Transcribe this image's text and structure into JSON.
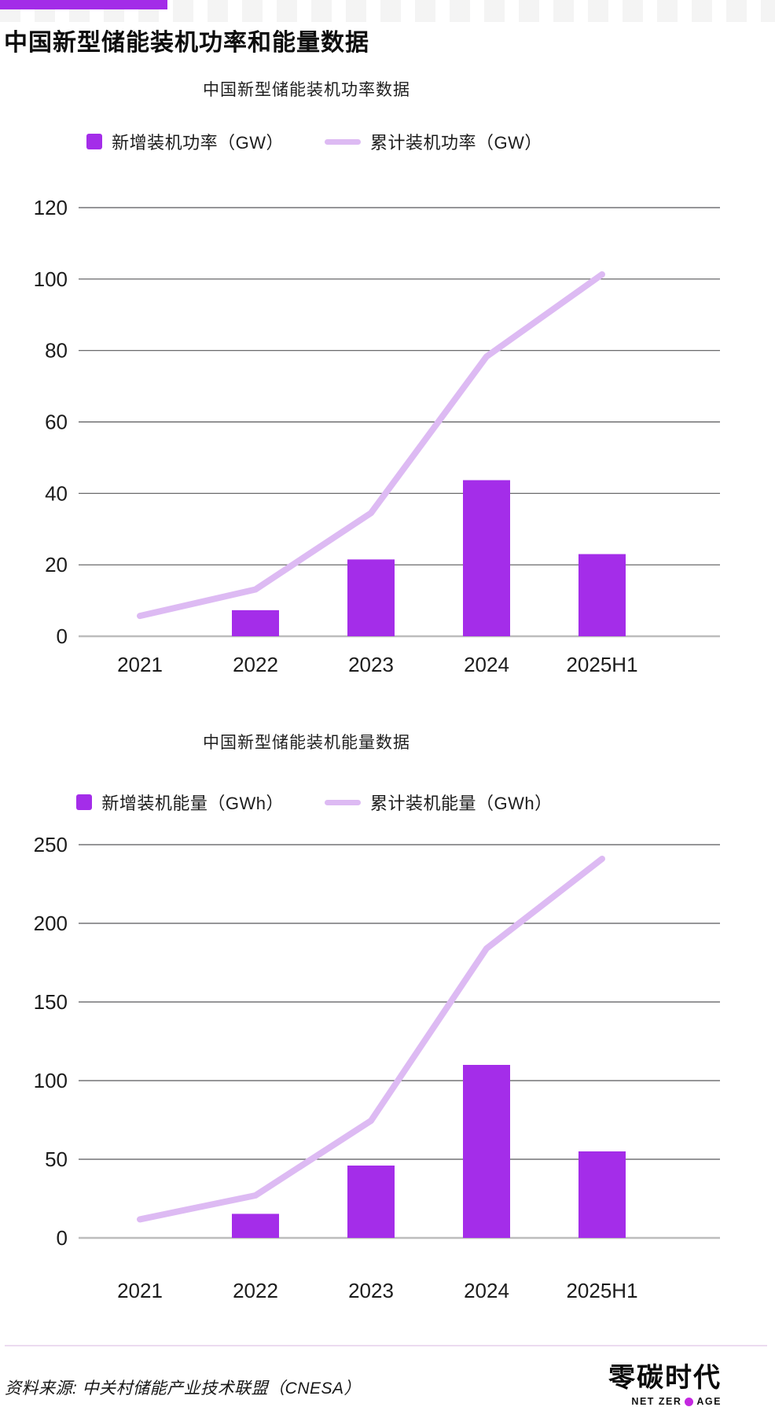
{
  "page": {
    "main_title": "中国新型储能装机功率和能量数据",
    "source_note": "资料来源: 中关村储能产业技术联盟（CNESA）",
    "brand": {
      "name": "零碳时代",
      "tagline_left": "NET ZER",
      "tagline_dot": "●",
      "tagline_right": "AGE"
    },
    "colors": {
      "topbar": "#a32ce8",
      "bar": "#a42de9",
      "line": "#ddbaf3",
      "grid": "#58585a",
      "baseline": "#bdbdbd",
      "tick_text": "#1c1c1c",
      "divider": "#ecdbf0",
      "brand_dot": "#c428e0"
    }
  },
  "chart_data": [
    {
      "type": "bar",
      "title": "中国新型储能装机功率数据",
      "categories": [
        "2021",
        "2022",
        "2023",
        "2024",
        "2025H1"
      ],
      "series": [
        {
          "name": "新增装机功率（GW）",
          "type": "bar",
          "values": [
            null,
            7.3,
            21.5,
            43.7,
            23
          ]
        },
        {
          "name": "累计装机功率（GW）",
          "type": "line",
          "values": [
            5.7,
            13.1,
            34.5,
            78.3,
            101.3
          ]
        }
      ],
      "xlabel": "",
      "ylabel": "",
      "ylim": [
        0,
        120
      ],
      "yticks": [
        0,
        20,
        40,
        60,
        80,
        100,
        120
      ],
      "grid": true,
      "legend_position": "top"
    },
    {
      "type": "bar",
      "title": "中国新型储能装机能量数据",
      "categories": [
        "2021",
        "2022",
        "2023",
        "2024",
        "2025H1"
      ],
      "series": [
        {
          "name": "新增装机能量（GWh）",
          "type": "bar",
          "values": [
            null,
            15.3,
            46,
            110,
            55
          ]
        },
        {
          "name": "累计装机能量（GWh）",
          "type": "line",
          "values": [
            11.8,
            27,
            74.5,
            184,
            241
          ]
        }
      ],
      "xlabel": "",
      "ylabel": "",
      "ylim": [
        0,
        250
      ],
      "yticks": [
        0,
        50,
        100,
        150,
        200,
        250
      ],
      "grid": true,
      "legend_position": "top"
    }
  ]
}
